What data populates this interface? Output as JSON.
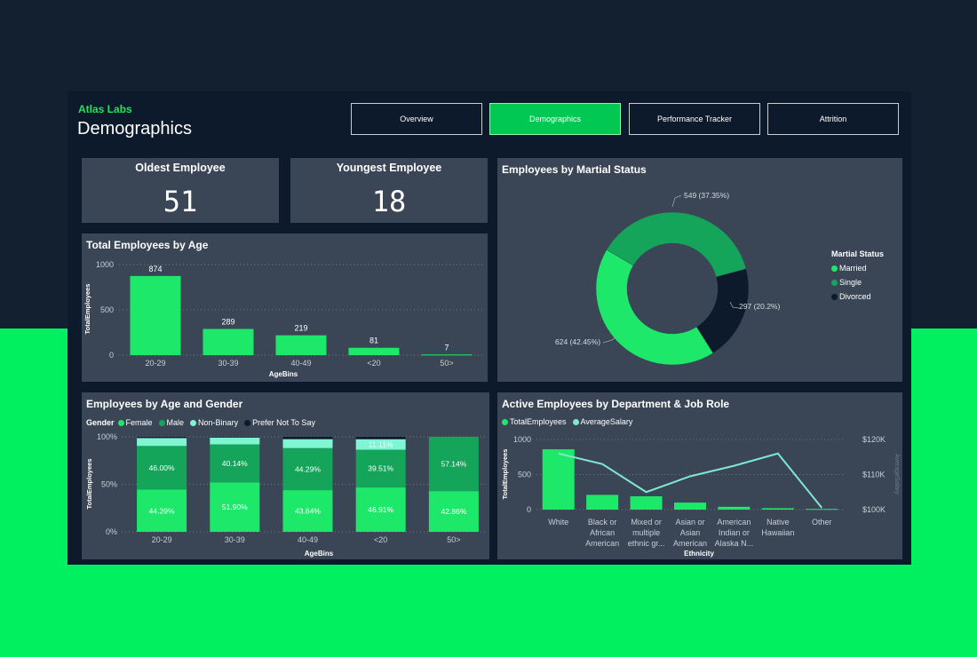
{
  "brand": "Atlas Labs",
  "page_title": "Demographics",
  "nav": [
    {
      "label": "Overview",
      "active": false
    },
    {
      "label": "Demographics",
      "active": true
    },
    {
      "label": "Performance Tracker",
      "active": false
    },
    {
      "label": "Attrition",
      "active": false
    }
  ],
  "kpis": {
    "oldest": {
      "title": "Oldest Employee",
      "value": "51"
    },
    "youngest": {
      "title": "Youngest Employee",
      "value": "18"
    }
  },
  "colors": {
    "bright_green": "#1ee86a",
    "mid_green": "#14a55b",
    "mint": "#7ff5d2",
    "navy": "#0c1a2b",
    "salary_line": "#7fe8d0"
  },
  "charts": {
    "age": {
      "title": "Total Employees by Age",
      "chart_data": {
        "type": "bar",
        "categories": [
          "20-29",
          "30-39",
          "40-49",
          "<20",
          "50>"
        ],
        "values": [
          874,
          289,
          219,
          81,
          7
        ],
        "data_labels": [
          "874",
          "289",
          "219",
          "81",
          "7"
        ],
        "xlabel": "AgeBins",
        "ylabel": "TotalEmployees",
        "ylim": [
          0,
          1000
        ],
        "yticks": [
          "1000",
          "500",
          "0"
        ]
      }
    },
    "marital": {
      "title": "Employees by Martial Status",
      "legend_title": "Martial Status",
      "chart_data": {
        "type": "pie",
        "slices": [
          {
            "name": "Married",
            "value": 624,
            "label": "624 (42.45%)",
            "color": "#1ee86a"
          },
          {
            "name": "Single",
            "value": 549,
            "label": "549 (37.35%)",
            "color": "#14a55b"
          },
          {
            "name": "Divorced",
            "value": 297,
            "label": "297 (20.2%)",
            "color": "#0c1a2b"
          }
        ],
        "legend_order": [
          "Married",
          "Single",
          "Divorced"
        ]
      }
    },
    "gender": {
      "title": "Employees by Age and Gender",
      "legend_title": "Gender",
      "chart_data": {
        "type": "bar",
        "stacked": "percent",
        "categories": [
          "20-29",
          "30-39",
          "40-49",
          "<20",
          "50>"
        ],
        "series": [
          {
            "name": "Female",
            "values": [
              44.39,
              51.9,
              43.84,
              46.91,
              42.86
            ],
            "labels": [
              "44.39%",
              "51.90%",
              "43.84%",
              "46.91%",
              "42.86%"
            ],
            "color": "#1ee86a"
          },
          {
            "name": "Male",
            "values": [
              46.0,
              40.14,
              44.29,
              39.51,
              57.14
            ],
            "labels": [
              "46.00%",
              "40.14%",
              "44.29%",
              "39.51%",
              "57.14%"
            ],
            "color": "#14a55b"
          },
          {
            "name": "Non-Binary",
            "values": [
              8.35,
              7.27,
              9.45,
              11.11,
              0
            ],
            "labels": [
              "",
              "",
              "",
              "11.11%",
              ""
            ],
            "color": "#7ff5d2"
          },
          {
            "name": "Prefer Not To Say",
            "values": [
              1.26,
              0.69,
              2.42,
              2.47,
              0
            ],
            "labels": [
              "",
              "",
              "",
              "",
              ""
            ],
            "color": "#0c1a2b"
          }
        ],
        "xlabel": "AgeBins",
        "ylabel": "TotalEmployees",
        "ylim": [
          0,
          100
        ],
        "yticks": [
          "100%",
          "50%",
          "0%"
        ]
      }
    },
    "dept": {
      "title": "Active Employees by Department & Job Role",
      "chart_data": {
        "type": "bar",
        "combo": "bar+line",
        "categories": [
          [
            "White"
          ],
          [
            "Black or",
            "African",
            "American"
          ],
          [
            "Mixed or",
            "multiple",
            "ethnic gr..."
          ],
          [
            "Asian or",
            "Asian",
            "American"
          ],
          [
            "American",
            "Indian or",
            "Alaska N..."
          ],
          [
            "Native",
            "Hawaiian"
          ],
          [
            "Other"
          ]
        ],
        "series": [
          {
            "name": "TotalEmployees",
            "values": [
              860,
              210,
              190,
              100,
              40,
              20,
              10
            ],
            "color": "#1ee86a",
            "axis": "left"
          },
          {
            "name": "AverageSalary",
            "values": [
              116000,
              113000,
              105000,
              109500,
              112500,
              116000,
              100500
            ],
            "color": "#7fe8d0",
            "axis": "right"
          }
        ],
        "xlabel": "Ethnicity",
        "ylabel": "TotalEmployees",
        "ylabel_right": "AverageSalary",
        "ylim": [
          0,
          1000
        ],
        "yticks": [
          "1000",
          "500",
          "0"
        ],
        "ylim_right": [
          100000,
          120000
        ],
        "yticks_right": [
          "$120K",
          "$110K",
          "$100K"
        ]
      }
    }
  }
}
